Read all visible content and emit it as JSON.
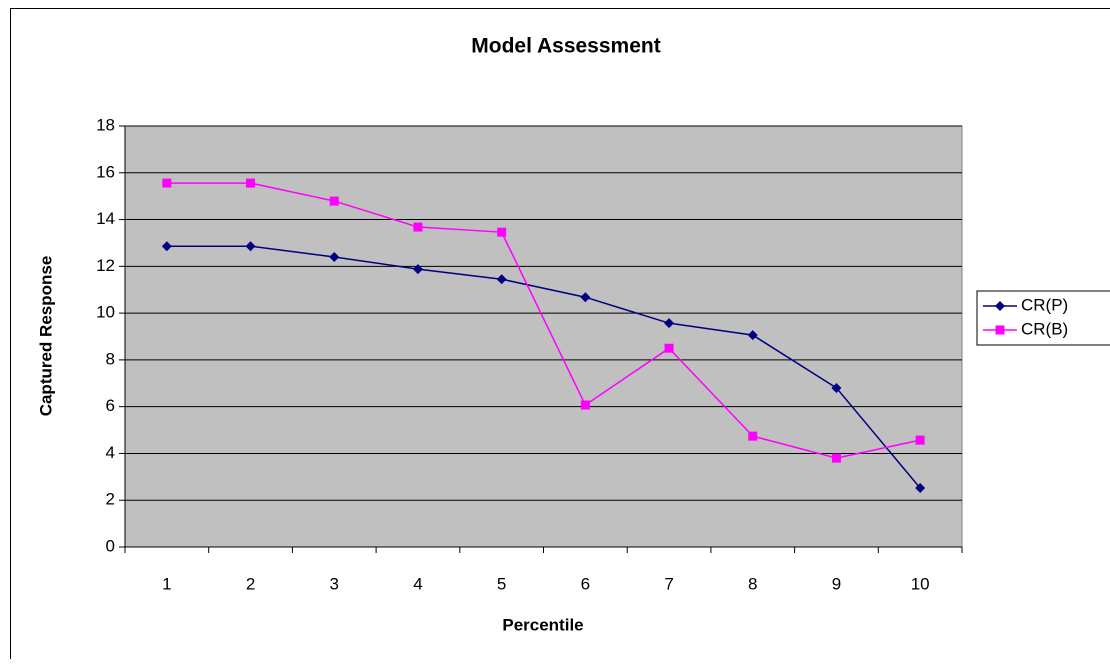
{
  "chart_data": {
    "type": "line",
    "title": "Model Assessment",
    "xlabel": "Percentile",
    "ylabel": "Captured Response",
    "categories": [
      "1",
      "2",
      "3",
      "4",
      "5",
      "6",
      "7",
      "8",
      "9",
      "10"
    ],
    "series": [
      {
        "name": "CR(P)",
        "color": "#000080",
        "marker": "diamond",
        "values": [
          12.86,
          12.86,
          12.4,
          11.88,
          11.45,
          10.68,
          9.57,
          9.06,
          6.8,
          2.52
        ]
      },
      {
        "name": "CR(B)",
        "color": "#ff00ff",
        "marker": "square",
        "values": [
          15.56,
          15.56,
          14.79,
          13.68,
          13.46,
          6.07,
          8.5,
          4.74,
          3.8,
          4.57
        ]
      }
    ],
    "ylim": [
      0,
      18
    ],
    "yticks": [
      0,
      2,
      4,
      6,
      8,
      10,
      12,
      14,
      16,
      18
    ],
    "grid": true,
    "plot_background": "#c0c0c0",
    "legend": "right"
  }
}
